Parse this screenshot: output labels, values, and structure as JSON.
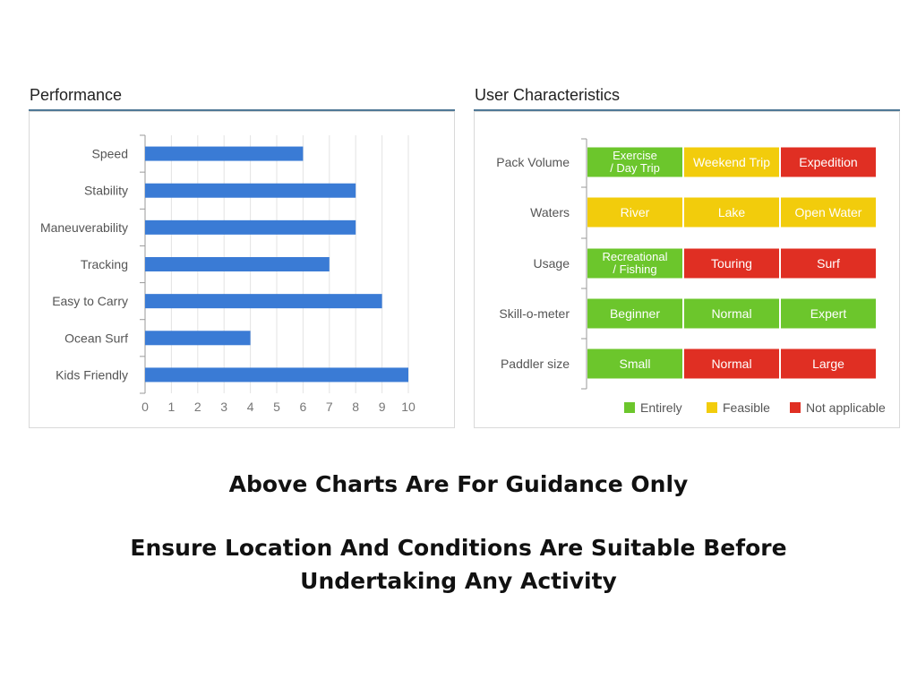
{
  "chart_data": [
    {
      "type": "bar",
      "orientation": "horizontal",
      "title": "Performance",
      "categories": [
        "Speed",
        "Stability",
        "Maneuverability",
        "Tracking",
        "Easy to Carry",
        "Ocean Surf",
        "Kids Friendly"
      ],
      "values": [
        6,
        8,
        8,
        7,
        9,
        4,
        10
      ],
      "xlim": [
        0,
        10
      ],
      "xticks": [
        "0",
        "1",
        "2",
        "3",
        "4",
        "5",
        "6",
        "7",
        "8",
        "9",
        "10"
      ],
      "grid": true,
      "colors": {
        "bar": "#3a7bd5"
      }
    },
    {
      "type": "table",
      "title": "User Characteristics",
      "rows": [
        {
          "label": "Pack Volume",
          "cells": [
            {
              "text": [
                "Exercise",
                "/ Day Trip"
              ],
              "status": "entirely"
            },
            {
              "text": [
                "Weekend Trip"
              ],
              "status": "feasible"
            },
            {
              "text": [
                "Expedition"
              ],
              "status": "not_applicable"
            }
          ]
        },
        {
          "label": "Waters",
          "cells": [
            {
              "text": [
                "River"
              ],
              "status": "feasible"
            },
            {
              "text": [
                "Lake"
              ],
              "status": "feasible"
            },
            {
              "text": [
                "Open Water"
              ],
              "status": "feasible"
            }
          ]
        },
        {
          "label": "Usage",
          "cells": [
            {
              "text": [
                "Recreational",
                "/ Fishing"
              ],
              "status": "entirely"
            },
            {
              "text": [
                "Touring"
              ],
              "status": "not_applicable"
            },
            {
              "text": [
                "Surf"
              ],
              "status": "not_applicable"
            }
          ]
        },
        {
          "label": "Skill-o-meter",
          "cells": [
            {
              "text": [
                "Beginner"
              ],
              "status": "entirely"
            },
            {
              "text": [
                "Normal"
              ],
              "status": "entirely"
            },
            {
              "text": [
                "Expert"
              ],
              "status": "entirely"
            }
          ]
        },
        {
          "label": "Paddler size",
          "cells": [
            {
              "text": [
                "Small"
              ],
              "status": "entirely"
            },
            {
              "text": [
                "Normal"
              ],
              "status": "not_applicable"
            },
            {
              "text": [
                "Large"
              ],
              "status": "not_applicable"
            }
          ]
        }
      ],
      "legend": [
        {
          "key": "entirely",
          "label": "Entirely",
          "color": "#6cc62c"
        },
        {
          "key": "feasible",
          "label": "Feasible",
          "color": "#f2cc0c"
        },
        {
          "key": "not_applicable",
          "label": "Not applicable",
          "color": "#e02f23"
        }
      ],
      "legend_position": "bottom-right"
    }
  ],
  "disclaimer": {
    "line1": "Above Charts Are For Guidance Only",
    "line2": "Ensure Location And Conditions Are Suitable Before",
    "line3": "Undertaking Any Activity"
  }
}
